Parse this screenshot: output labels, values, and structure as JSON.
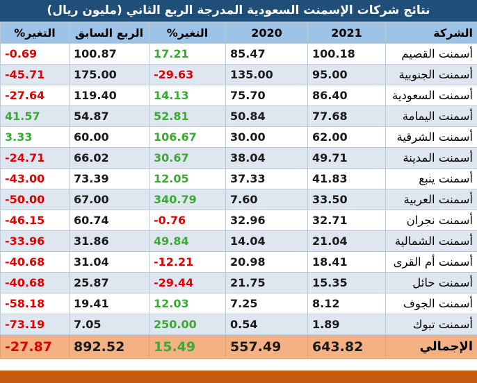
{
  "title": "نتائج شركات الإسمنت السعودية المدرجة الربع الثاني (مليون ريال)",
  "headers": {
    "company": "الشركة",
    "y2021": "2021",
    "y2020": "2020",
    "change": "التغير%",
    "prev_quarter": "الربع السابق",
    "change2": "التغير%"
  },
  "rows": [
    {
      "company": "أسمنت القصيم",
      "y2021": "100.18",
      "y2020": "85.47",
      "change": "17.21",
      "prev": "100.87",
      "change2": "-0.69"
    },
    {
      "company": "أسمنت الجنوبية",
      "y2021": "95.00",
      "y2020": "135.00",
      "change": "-29.63",
      "prev": "175.00",
      "change2": "-45.71"
    },
    {
      "company": "أسمنت السعودية",
      "y2021": "86.40",
      "y2020": "75.70",
      "change": "14.13",
      "prev": "119.40",
      "change2": "-27.64"
    },
    {
      "company": "أسمنت اليمامة",
      "y2021": "77.68",
      "y2020": "50.84",
      "change": "52.81",
      "prev": "54.87",
      "change2": "41.57"
    },
    {
      "company": "أسمنت الشرقية",
      "y2021": "62.00",
      "y2020": "30.00",
      "change": "106.67",
      "prev": "60.00",
      "change2": "3.33"
    },
    {
      "company": "أسمنت المدينة",
      "y2021": "49.71",
      "y2020": "38.04",
      "change": "30.67",
      "prev": "66.02",
      "change2": "-24.71"
    },
    {
      "company": "أسمنت ينبع",
      "y2021": "41.83",
      "y2020": "37.33",
      "change": "12.05",
      "prev": "73.39",
      "change2": "-43.00"
    },
    {
      "company": "أسمنت العربية",
      "y2021": "33.50",
      "y2020": "7.60",
      "change": "340.79",
      "prev": "67.00",
      "change2": "-50.00"
    },
    {
      "company": "أسمنت نجران",
      "y2021": "32.71",
      "y2020": "32.96",
      "change": "-0.76",
      "prev": "60.74",
      "change2": "-46.15"
    },
    {
      "company": "أسمنت الشمالية",
      "y2021": "21.04",
      "y2020": "14.04",
      "change": "49.84",
      "prev": "31.86",
      "change2": "-33.96"
    },
    {
      "company": "أسمنت أم القرى",
      "y2021": "18.41",
      "y2020": "20.98",
      "change": "-12.21",
      "prev": "31.04",
      "change2": "-40.68"
    },
    {
      "company": "أسمنت حائل",
      "y2021": "15.35",
      "y2020": "21.75",
      "change": "-29.44",
      "prev": "25.87",
      "change2": "-40.68"
    },
    {
      "company": "أسمنت الجوف",
      "y2021": "8.12",
      "y2020": "7.25",
      "change": "12.03",
      "prev": "19.41",
      "change2": "-58.18"
    },
    {
      "company": "أسمنت تبوك",
      "y2021": "1.89",
      "y2020": "0.54",
      "change": "250.00",
      "prev": "7.05",
      "change2": "-73.19"
    }
  ],
  "total": {
    "company": "الإجمالي",
    "y2021": "643.82",
    "y2020": "557.49",
    "change": "15.49",
    "prev": "892.52",
    "change2": "-27.87"
  },
  "colors": {
    "title_bg": "#1f4e79",
    "header_bg": "#9dc3e6",
    "total_bg": "#f4b183",
    "positive": "#3aaa35",
    "negative": "#e00000",
    "bottom_bar": "#c55a11"
  }
}
